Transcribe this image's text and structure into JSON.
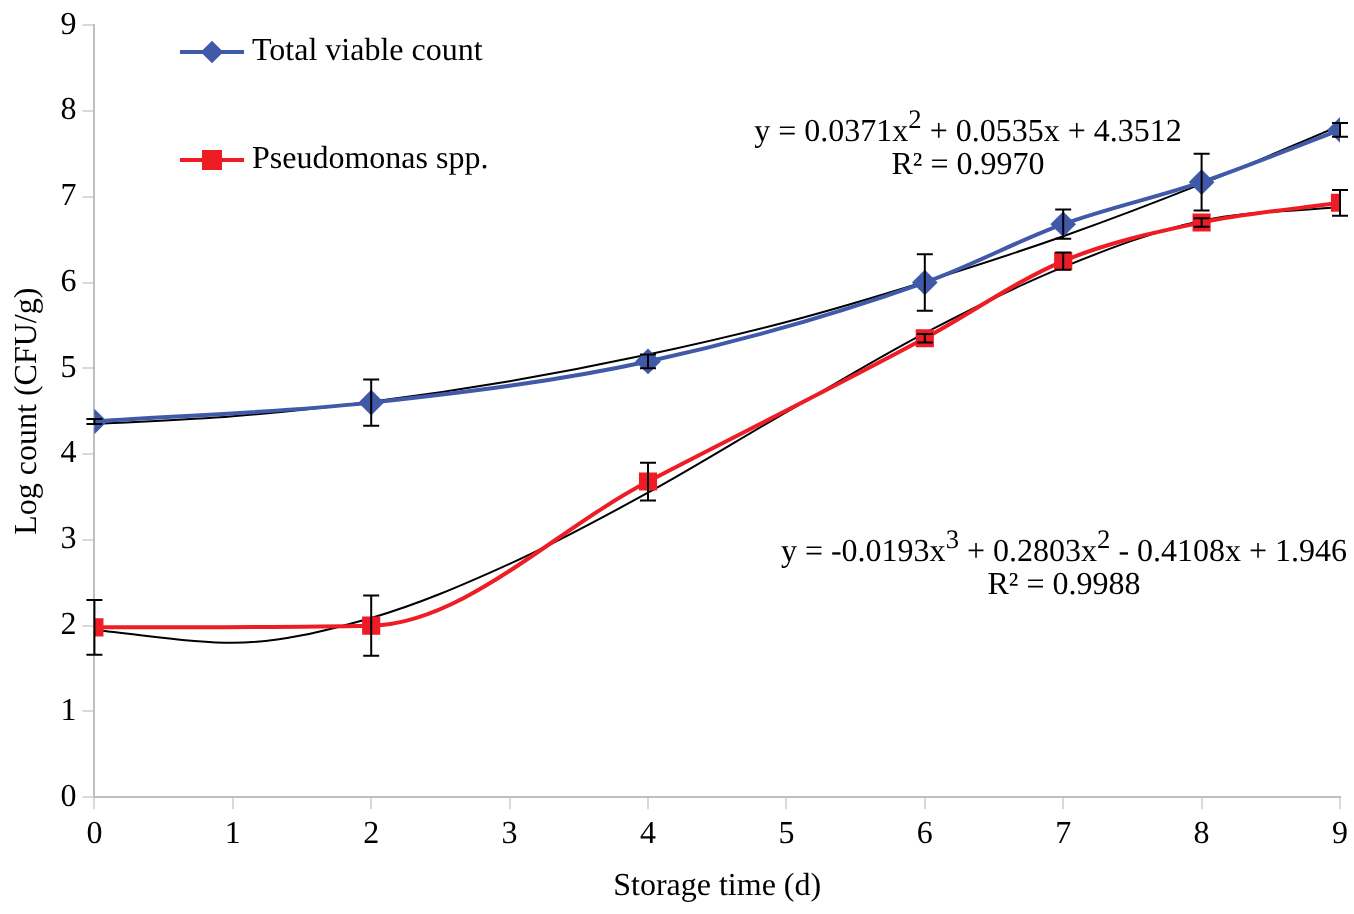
{
  "chart_data": {
    "type": "line",
    "xlabel": "Storage time (d)",
    "ylabel": "Log count (CFU/g)",
    "x": [
      0,
      2,
      4,
      6,
      7,
      8,
      9
    ],
    "xlim": [
      0,
      9
    ],
    "xticks": [
      0,
      1,
      2,
      3,
      4,
      5,
      6,
      7,
      8,
      9
    ],
    "ylim": [
      0,
      9
    ],
    "yticks": [
      0,
      1,
      2,
      3,
      4,
      5,
      6,
      7,
      8,
      9
    ],
    "grid": false,
    "legend": "top left",
    "line_style": "solid",
    "series": [
      {
        "name": "Total viable count",
        "color": "#4059a8",
        "marker": "diamond",
        "values": [
          4.38,
          4.6,
          5.08,
          6.0,
          6.68,
          7.17,
          7.78
        ],
        "errors": [
          0.03,
          0.27,
          0.08,
          0.33,
          0.17,
          0.33,
          0.08
        ]
      },
      {
        "name": "Pseudomonas spp.",
        "color": "#ee1c25",
        "marker": "square",
        "values": [
          1.98,
          2.0,
          3.68,
          5.35,
          6.25,
          6.7,
          6.93
        ],
        "errors": [
          0.32,
          0.35,
          0.22,
          0.05,
          0.1,
          0.05,
          0.15
        ]
      },
      {
        "type": "line",
        "color": "#000000",
        "marker": "none",
        "x": [
          0,
          1,
          2,
          3,
          4,
          5,
          6,
          7,
          8,
          9
        ],
        "values": [
          4.35,
          4.44,
          4.61,
          4.85,
          5.16,
          5.54,
          6.01,
          6.54,
          7.15,
          7.83
        ]
      },
      {
        "type": "line",
        "color": "#000000",
        "marker": "none",
        "x": [
          0,
          1,
          2,
          3,
          4,
          5,
          6,
          7,
          8,
          9
        ],
        "values": [
          1.95,
          1.8,
          2.09,
          2.72,
          3.55,
          4.49,
          5.41,
          6.18,
          6.72,
          6.88
        ]
      }
    ],
    "annotations": [
      "y = 0.0371x$^{2}$ + 0.0535x + 4.3512",
      "R² = 0.9970",
      "y = -0.0193x$^{3}$ + 0.2803x$^{2}$ - 0.4108x + 1.946",
      "R² = 0.9988"
    ]
  }
}
